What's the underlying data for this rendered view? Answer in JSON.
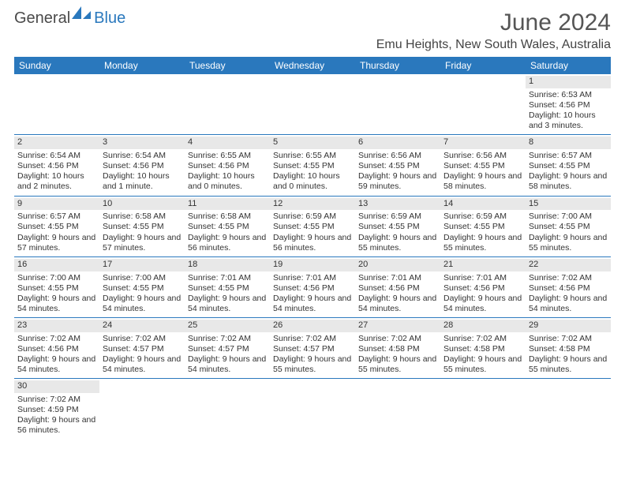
{
  "logo": {
    "text1": "General",
    "text2": "Blue"
  },
  "title": "June 2024",
  "subtitle": "Emu Heights, New South Wales, Australia",
  "colors": {
    "header_bg": "#2a78bd",
    "header_text": "#ffffff",
    "daynum_bg": "#e8e8e8",
    "border": "#2a78bd",
    "page_bg": "#ffffff",
    "body_text": "#333333"
  },
  "day_headers": [
    "Sunday",
    "Monday",
    "Tuesday",
    "Wednesday",
    "Thursday",
    "Friday",
    "Saturday"
  ],
  "weeks": [
    [
      null,
      null,
      null,
      null,
      null,
      null,
      {
        "n": "1",
        "sr": "Sunrise: 6:53 AM",
        "ss": "Sunset: 4:56 PM",
        "dl": "Daylight: 10 hours and 3 minutes."
      }
    ],
    [
      {
        "n": "2",
        "sr": "Sunrise: 6:54 AM",
        "ss": "Sunset: 4:56 PM",
        "dl": "Daylight: 10 hours and 2 minutes."
      },
      {
        "n": "3",
        "sr": "Sunrise: 6:54 AM",
        "ss": "Sunset: 4:56 PM",
        "dl": "Daylight: 10 hours and 1 minute."
      },
      {
        "n": "4",
        "sr": "Sunrise: 6:55 AM",
        "ss": "Sunset: 4:56 PM",
        "dl": "Daylight: 10 hours and 0 minutes."
      },
      {
        "n": "5",
        "sr": "Sunrise: 6:55 AM",
        "ss": "Sunset: 4:55 PM",
        "dl": "Daylight: 10 hours and 0 minutes."
      },
      {
        "n": "6",
        "sr": "Sunrise: 6:56 AM",
        "ss": "Sunset: 4:55 PM",
        "dl": "Daylight: 9 hours and 59 minutes."
      },
      {
        "n": "7",
        "sr": "Sunrise: 6:56 AM",
        "ss": "Sunset: 4:55 PM",
        "dl": "Daylight: 9 hours and 58 minutes."
      },
      {
        "n": "8",
        "sr": "Sunrise: 6:57 AM",
        "ss": "Sunset: 4:55 PM",
        "dl": "Daylight: 9 hours and 58 minutes."
      }
    ],
    [
      {
        "n": "9",
        "sr": "Sunrise: 6:57 AM",
        "ss": "Sunset: 4:55 PM",
        "dl": "Daylight: 9 hours and 57 minutes."
      },
      {
        "n": "10",
        "sr": "Sunrise: 6:58 AM",
        "ss": "Sunset: 4:55 PM",
        "dl": "Daylight: 9 hours and 57 minutes."
      },
      {
        "n": "11",
        "sr": "Sunrise: 6:58 AM",
        "ss": "Sunset: 4:55 PM",
        "dl": "Daylight: 9 hours and 56 minutes."
      },
      {
        "n": "12",
        "sr": "Sunrise: 6:59 AM",
        "ss": "Sunset: 4:55 PM",
        "dl": "Daylight: 9 hours and 56 minutes."
      },
      {
        "n": "13",
        "sr": "Sunrise: 6:59 AM",
        "ss": "Sunset: 4:55 PM",
        "dl": "Daylight: 9 hours and 55 minutes."
      },
      {
        "n": "14",
        "sr": "Sunrise: 6:59 AM",
        "ss": "Sunset: 4:55 PM",
        "dl": "Daylight: 9 hours and 55 minutes."
      },
      {
        "n": "15",
        "sr": "Sunrise: 7:00 AM",
        "ss": "Sunset: 4:55 PM",
        "dl": "Daylight: 9 hours and 55 minutes."
      }
    ],
    [
      {
        "n": "16",
        "sr": "Sunrise: 7:00 AM",
        "ss": "Sunset: 4:55 PM",
        "dl": "Daylight: 9 hours and 54 minutes."
      },
      {
        "n": "17",
        "sr": "Sunrise: 7:00 AM",
        "ss": "Sunset: 4:55 PM",
        "dl": "Daylight: 9 hours and 54 minutes."
      },
      {
        "n": "18",
        "sr": "Sunrise: 7:01 AM",
        "ss": "Sunset: 4:55 PM",
        "dl": "Daylight: 9 hours and 54 minutes."
      },
      {
        "n": "19",
        "sr": "Sunrise: 7:01 AM",
        "ss": "Sunset: 4:56 PM",
        "dl": "Daylight: 9 hours and 54 minutes."
      },
      {
        "n": "20",
        "sr": "Sunrise: 7:01 AM",
        "ss": "Sunset: 4:56 PM",
        "dl": "Daylight: 9 hours and 54 minutes."
      },
      {
        "n": "21",
        "sr": "Sunrise: 7:01 AM",
        "ss": "Sunset: 4:56 PM",
        "dl": "Daylight: 9 hours and 54 minutes."
      },
      {
        "n": "22",
        "sr": "Sunrise: 7:02 AM",
        "ss": "Sunset: 4:56 PM",
        "dl": "Daylight: 9 hours and 54 minutes."
      }
    ],
    [
      {
        "n": "23",
        "sr": "Sunrise: 7:02 AM",
        "ss": "Sunset: 4:56 PM",
        "dl": "Daylight: 9 hours and 54 minutes."
      },
      {
        "n": "24",
        "sr": "Sunrise: 7:02 AM",
        "ss": "Sunset: 4:57 PM",
        "dl": "Daylight: 9 hours and 54 minutes."
      },
      {
        "n": "25",
        "sr": "Sunrise: 7:02 AM",
        "ss": "Sunset: 4:57 PM",
        "dl": "Daylight: 9 hours and 54 minutes."
      },
      {
        "n": "26",
        "sr": "Sunrise: 7:02 AM",
        "ss": "Sunset: 4:57 PM",
        "dl": "Daylight: 9 hours and 55 minutes."
      },
      {
        "n": "27",
        "sr": "Sunrise: 7:02 AM",
        "ss": "Sunset: 4:58 PM",
        "dl": "Daylight: 9 hours and 55 minutes."
      },
      {
        "n": "28",
        "sr": "Sunrise: 7:02 AM",
        "ss": "Sunset: 4:58 PM",
        "dl": "Daylight: 9 hours and 55 minutes."
      },
      {
        "n": "29",
        "sr": "Sunrise: 7:02 AM",
        "ss": "Sunset: 4:58 PM",
        "dl": "Daylight: 9 hours and 55 minutes."
      }
    ],
    [
      {
        "n": "30",
        "sr": "Sunrise: 7:02 AM",
        "ss": "Sunset: 4:59 PM",
        "dl": "Daylight: 9 hours and 56 minutes."
      },
      null,
      null,
      null,
      null,
      null,
      null
    ]
  ]
}
